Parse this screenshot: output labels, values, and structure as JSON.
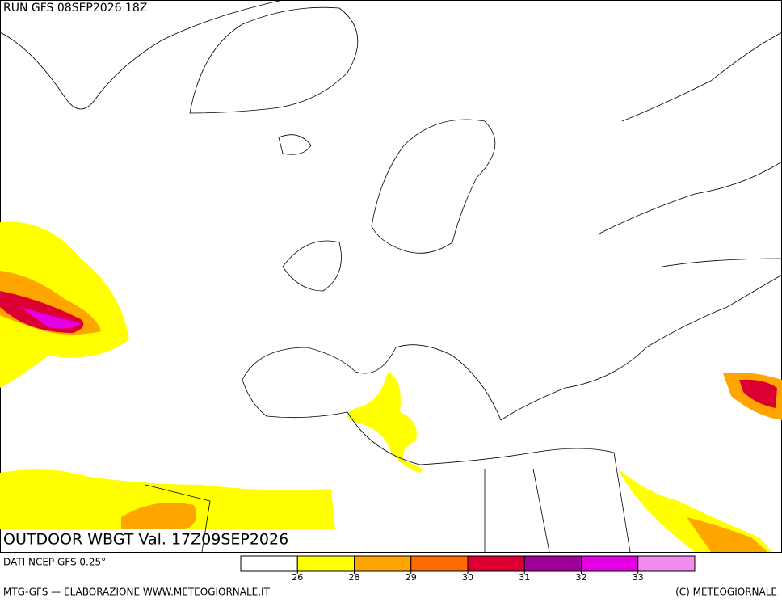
{
  "header": {
    "run": "RUN GFS 08SEP2026 18Z"
  },
  "title": "OUTDOOR WBGT Val. 17Z09SEP2026",
  "source": "DATI NCEP GFS 0.25°",
  "footer": {
    "left": "MTG-GFS — ELABORAZIONE WWW.METEOGIORNALE.IT",
    "right": "(C) METEOGIORNALE"
  },
  "legend": {
    "colors": [
      "#ffffff",
      "#ffff00",
      "#ffa500",
      "#ff6a00",
      "#dc0032",
      "#a0009a",
      "#e600e6",
      "#f08cf0"
    ],
    "ticks": [
      26,
      28,
      29,
      30,
      31,
      32,
      33
    ]
  }
}
